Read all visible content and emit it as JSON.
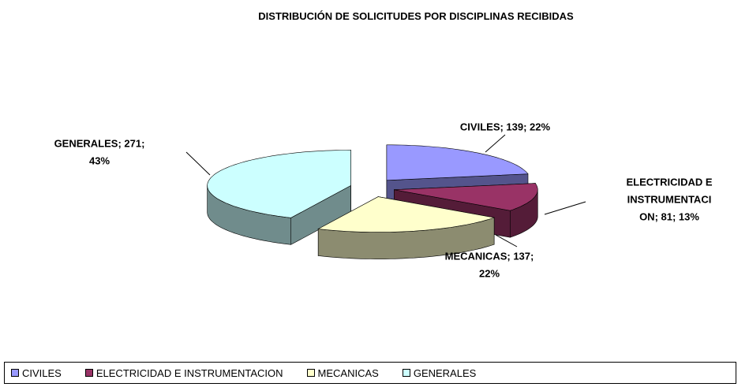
{
  "chart_data": {
    "type": "pie3d",
    "title": "DISTRIBUCIÓN DE SOLICITUDES POR DISCIPLINAS RECIBIDAS",
    "categories": [
      "CIVILES",
      "ELECTRICIDAD E INSTRUMENTACION",
      "MECANICAS",
      "GENERALES"
    ],
    "values": [
      139,
      81,
      137,
      271
    ],
    "value_labels": [
      [
        "CIVILES; 139; 22%"
      ],
      [
        "ELECTRICIDAD E",
        "INSTRUMENTACI",
        "ON; 81; 13%"
      ],
      [
        "MECANICAS; 137;",
        "22%"
      ],
      [
        "GENERALES; 271;",
        "43%"
      ]
    ],
    "colors": [
      "#9999ff",
      "#993366",
      "#ffffcc",
      "#ccffff"
    ],
    "legend": "bottom"
  }
}
